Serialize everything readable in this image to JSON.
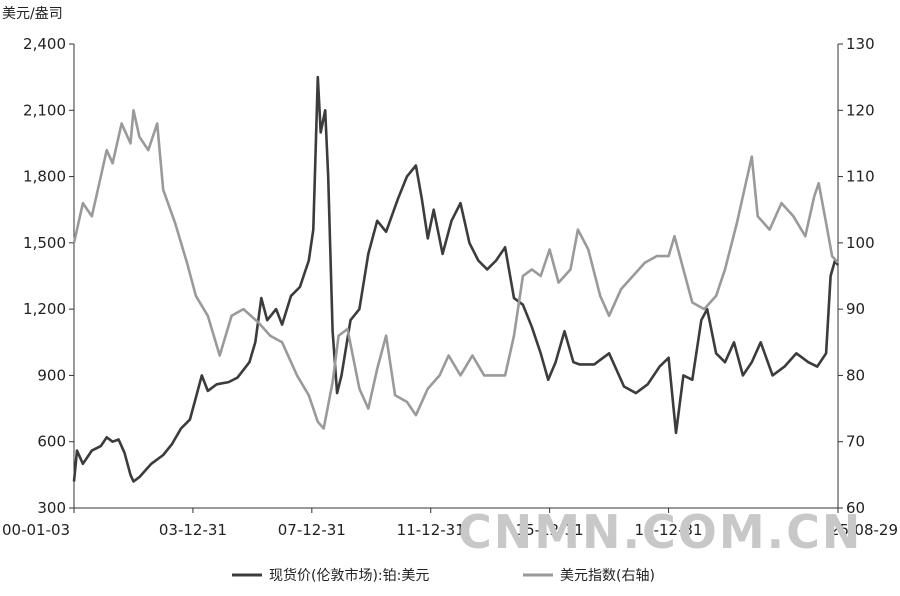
{
  "chart_data": {
    "type": "line",
    "left_axis_unit": "美元/盎司",
    "y_left": {
      "min": 300,
      "max": 2400,
      "ticks": [
        "2,400",
        "2,100",
        "1,800",
        "1,500",
        "1,200",
        "900",
        "600",
        "300"
      ]
    },
    "y_right": {
      "min": 60,
      "max": 130,
      "ticks": [
        "130",
        "120",
        "110",
        "100",
        "90",
        "80",
        "70",
        "60"
      ]
    },
    "x_range": [
      2000.0,
      2025.7
    ],
    "x_ticks": [
      {
        "x": 2000.0,
        "label": "00-01-03"
      },
      {
        "x": 2004.0,
        "label": "03-12-31"
      },
      {
        "x": 2008.0,
        "label": "07-12-31"
      },
      {
        "x": 2012.0,
        "label": "11-12-31"
      },
      {
        "x": 2016.0,
        "label": "15-12-31"
      },
      {
        "x": 2020.0,
        "label": "19-12-31"
      },
      {
        "x": 2025.7,
        "label": "25-08-29"
      }
    ],
    "series": [
      {
        "name": "现货价(伦敦市场):铂:美元",
        "axis": "left",
        "color": "#3c3c3c",
        "points": [
          [
            2000.0,
            420
          ],
          [
            2000.1,
            560
          ],
          [
            2000.3,
            500
          ],
          [
            2000.6,
            560
          ],
          [
            2000.9,
            580
          ],
          [
            2001.1,
            620
          ],
          [
            2001.3,
            600
          ],
          [
            2001.5,
            610
          ],
          [
            2001.7,
            550
          ],
          [
            2001.9,
            450
          ],
          [
            2002.0,
            420
          ],
          [
            2002.2,
            440
          ],
          [
            2002.6,
            500
          ],
          [
            2003.0,
            540
          ],
          [
            2003.3,
            590
          ],
          [
            2003.6,
            660
          ],
          [
            2003.9,
            700
          ],
          [
            2004.1,
            800
          ],
          [
            2004.3,
            900
          ],
          [
            2004.5,
            830
          ],
          [
            2004.8,
            860
          ],
          [
            2005.2,
            870
          ],
          [
            2005.5,
            890
          ],
          [
            2005.9,
            960
          ],
          [
            2006.1,
            1050
          ],
          [
            2006.3,
            1250
          ],
          [
            2006.5,
            1150
          ],
          [
            2006.8,
            1200
          ],
          [
            2007.0,
            1130
          ],
          [
            2007.3,
            1260
          ],
          [
            2007.6,
            1300
          ],
          [
            2007.9,
            1420
          ],
          [
            2008.05,
            1560
          ],
          [
            2008.2,
            2250
          ],
          [
            2008.3,
            2000
          ],
          [
            2008.45,
            2100
          ],
          [
            2008.55,
            1800
          ],
          [
            2008.7,
            1100
          ],
          [
            2008.85,
            820
          ],
          [
            2009.0,
            900
          ],
          [
            2009.3,
            1150
          ],
          [
            2009.6,
            1200
          ],
          [
            2009.9,
            1450
          ],
          [
            2010.2,
            1600
          ],
          [
            2010.5,
            1550
          ],
          [
            2010.9,
            1700
          ],
          [
            2011.2,
            1800
          ],
          [
            2011.5,
            1850
          ],
          [
            2011.7,
            1700
          ],
          [
            2011.9,
            1520
          ],
          [
            2012.1,
            1650
          ],
          [
            2012.4,
            1450
          ],
          [
            2012.7,
            1600
          ],
          [
            2013.0,
            1680
          ],
          [
            2013.3,
            1500
          ],
          [
            2013.6,
            1420
          ],
          [
            2013.9,
            1380
          ],
          [
            2014.2,
            1420
          ],
          [
            2014.5,
            1480
          ],
          [
            2014.8,
            1250
          ],
          [
            2015.1,
            1220
          ],
          [
            2015.4,
            1120
          ],
          [
            2015.7,
            1000
          ],
          [
            2015.95,
            880
          ],
          [
            2016.2,
            960
          ],
          [
            2016.5,
            1100
          ],
          [
            2016.8,
            960
          ],
          [
            2017.0,
            950
          ],
          [
            2017.5,
            950
          ],
          [
            2018.0,
            1000
          ],
          [
            2018.5,
            850
          ],
          [
            2018.9,
            820
          ],
          [
            2019.3,
            860
          ],
          [
            2019.7,
            940
          ],
          [
            2020.0,
            980
          ],
          [
            2020.25,
            640
          ],
          [
            2020.5,
            900
          ],
          [
            2020.8,
            880
          ],
          [
            2021.1,
            1150
          ],
          [
            2021.3,
            1200
          ],
          [
            2021.6,
            1000
          ],
          [
            2021.9,
            960
          ],
          [
            2022.2,
            1050
          ],
          [
            2022.5,
            900
          ],
          [
            2022.8,
            960
          ],
          [
            2023.1,
            1050
          ],
          [
            2023.5,
            900
          ],
          [
            2023.9,
            940
          ],
          [
            2024.3,
            1000
          ],
          [
            2024.7,
            960
          ],
          [
            2025.0,
            940
          ],
          [
            2025.3,
            1000
          ],
          [
            2025.45,
            1350
          ],
          [
            2025.6,
            1420
          ],
          [
            2025.7,
            1400
          ]
        ]
      },
      {
        "name": "美元指数(右轴)",
        "axis": "right",
        "color": "#9a9a9a",
        "points": [
          [
            2000.0,
            100
          ],
          [
            2000.3,
            106
          ],
          [
            2000.6,
            104
          ],
          [
            2000.9,
            110
          ],
          [
            2001.1,
            114
          ],
          [
            2001.3,
            112
          ],
          [
            2001.6,
            118
          ],
          [
            2001.9,
            115
          ],
          [
            2002.0,
            120
          ],
          [
            2002.2,
            116
          ],
          [
            2002.5,
            114
          ],
          [
            2002.8,
            118
          ],
          [
            2003.0,
            108
          ],
          [
            2003.4,
            103
          ],
          [
            2003.8,
            97
          ],
          [
            2004.1,
            92
          ],
          [
            2004.5,
            89
          ],
          [
            2004.9,
            83
          ],
          [
            2005.3,
            89
          ],
          [
            2005.7,
            90
          ],
          [
            2006.2,
            88
          ],
          [
            2006.6,
            86
          ],
          [
            2007.0,
            85
          ],
          [
            2007.5,
            80
          ],
          [
            2007.9,
            77
          ],
          [
            2008.2,
            73
          ],
          [
            2008.4,
            72
          ],
          [
            2008.7,
            79
          ],
          [
            2008.9,
            86
          ],
          [
            2009.2,
            87
          ],
          [
            2009.6,
            78
          ],
          [
            2009.9,
            75
          ],
          [
            2010.2,
            81
          ],
          [
            2010.5,
            86
          ],
          [
            2010.8,
            77
          ],
          [
            2011.2,
            76
          ],
          [
            2011.5,
            74
          ],
          [
            2011.9,
            78
          ],
          [
            2012.3,
            80
          ],
          [
            2012.6,
            83
          ],
          [
            2013.0,
            80
          ],
          [
            2013.4,
            83
          ],
          [
            2013.8,
            80
          ],
          [
            2014.2,
            80
          ],
          [
            2014.5,
            80
          ],
          [
            2014.8,
            86
          ],
          [
            2015.1,
            95
          ],
          [
            2015.4,
            96
          ],
          [
            2015.7,
            95
          ],
          [
            2016.0,
            99
          ],
          [
            2016.3,
            94
          ],
          [
            2016.7,
            96
          ],
          [
            2016.95,
            102
          ],
          [
            2017.3,
            99
          ],
          [
            2017.7,
            92
          ],
          [
            2018.0,
            89
          ],
          [
            2018.4,
            93
          ],
          [
            2018.8,
            95
          ],
          [
            2019.2,
            97
          ],
          [
            2019.6,
            98
          ],
          [
            2020.0,
            98
          ],
          [
            2020.2,
            101
          ],
          [
            2020.5,
            96
          ],
          [
            2020.8,
            91
          ],
          [
            2021.2,
            90
          ],
          [
            2021.6,
            92
          ],
          [
            2021.9,
            96
          ],
          [
            2022.3,
            103
          ],
          [
            2022.7,
            111
          ],
          [
            2022.8,
            113
          ],
          [
            2023.0,
            104
          ],
          [
            2023.4,
            102
          ],
          [
            2023.8,
            106
          ],
          [
            2024.2,
            104
          ],
          [
            2024.6,
            101
          ],
          [
            2024.9,
            107
          ],
          [
            2025.05,
            109
          ],
          [
            2025.3,
            103
          ],
          [
            2025.5,
            98
          ],
          [
            2025.7,
            97
          ]
        ]
      }
    ],
    "legend": {
      "placement": "bottom",
      "entries": [
        "现货价(伦敦市场):铂:美元",
        "美元指数(右轴)"
      ]
    },
    "grid": false
  },
  "watermark": "CNMN.COM.CN"
}
